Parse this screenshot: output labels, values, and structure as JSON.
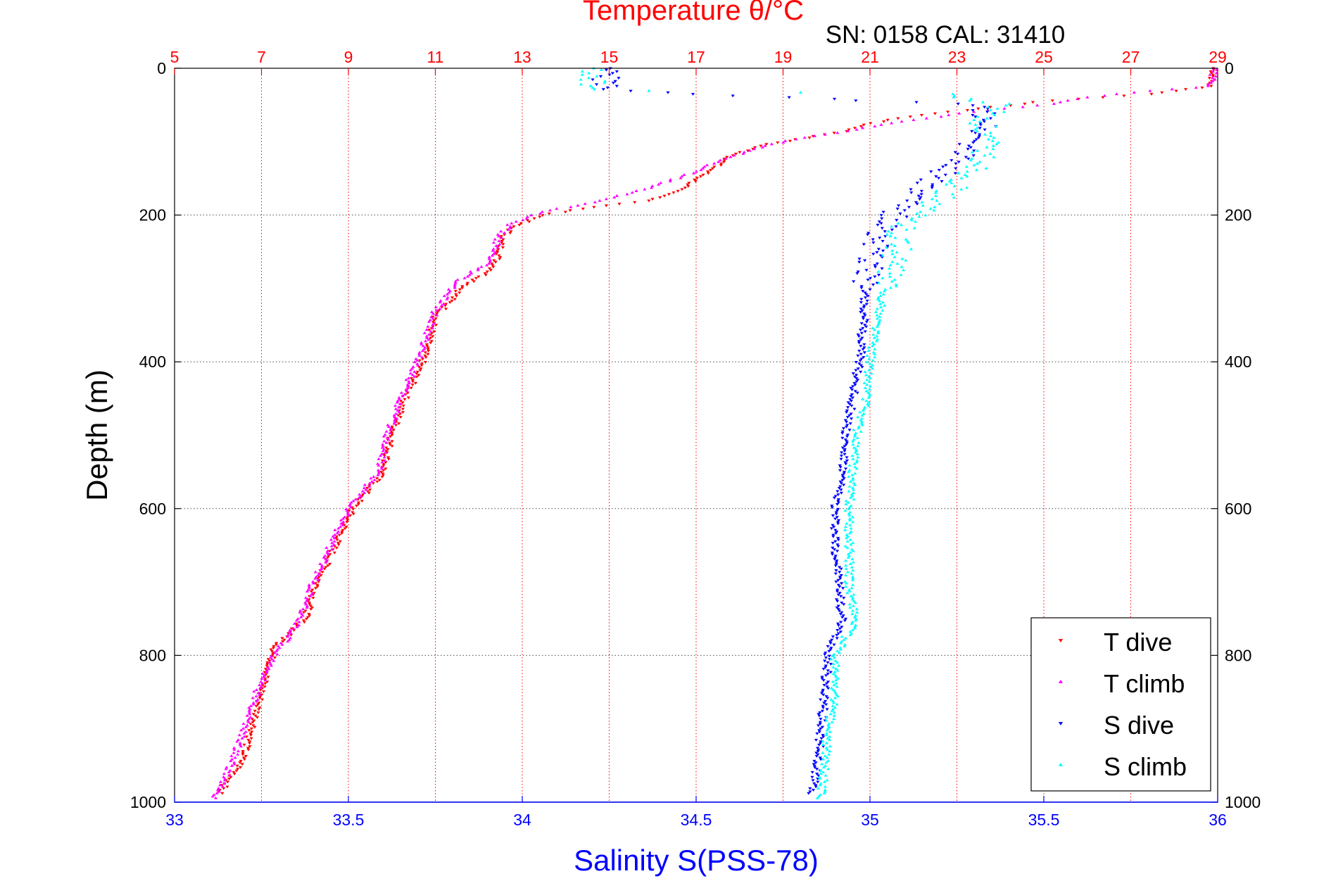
{
  "chart_data": {
    "type": "scatter",
    "title": "Temperature θ/°C",
    "subtitle": "SN: 0158  CAL: 31410",
    "ylabel": "Depth (m)",
    "xlabel": "Salinity S(PSS-78)",
    "colors": {
      "temperature_axis": "#ff0000",
      "salinity_axis": "#0000ff",
      "T_dive": "#ff0000",
      "T_climb": "#ff00ff",
      "S_dive": "#0000ff",
      "S_climb": "#00ffff",
      "grid_temperature": "#ff0000",
      "grid_depth": "#000000"
    },
    "y_axis": {
      "range": [
        0,
        1000
      ],
      "reversed": true,
      "ticks": [
        "0",
        "200",
        "400",
        "600",
        "800",
        "1000"
      ],
      "grid": true
    },
    "x_axis_salinity": {
      "range": [
        33,
        36
      ],
      "ticks": [
        "33",
        "33.5",
        "34",
        "34.5",
        "35",
        "35.5",
        "36"
      ]
    },
    "x_axis_temperature": {
      "range": [
        5,
        29
      ],
      "ticks": [
        "5",
        "7",
        "9",
        "11",
        "13",
        "15",
        "17",
        "19",
        "21",
        "23",
        "25",
        "27",
        "29"
      ],
      "grid": true
    },
    "legend": {
      "placement": "bottom-right",
      "entries": [
        "T dive",
        "T climb",
        "S dive",
        "S climb"
      ]
    },
    "series": [
      {
        "name": "T dive",
        "x_axis": "temperature",
        "marker": "triangle-down",
        "profile": [
          [
            0,
            28.9
          ],
          [
            10,
            28.9
          ],
          [
            25,
            28.8
          ],
          [
            35,
            27.5
          ],
          [
            45,
            25.0
          ],
          [
            55,
            23.5
          ],
          [
            65,
            22.0
          ],
          [
            75,
            21.0
          ],
          [
            85,
            20.5
          ],
          [
            95,
            19.5
          ],
          [
            105,
            18.5
          ],
          [
            120,
            17.8
          ],
          [
            140,
            17.3
          ],
          [
            160,
            16.8
          ],
          [
            180,
            16.0
          ],
          [
            190,
            14.5
          ],
          [
            200,
            13.5
          ],
          [
            215,
            12.8
          ],
          [
            235,
            12.5
          ],
          [
            250,
            12.5
          ],
          [
            275,
            12.3
          ],
          [
            300,
            11.6
          ],
          [
            340,
            11.0
          ],
          [
            400,
            10.7
          ],
          [
            450,
            10.3
          ],
          [
            500,
            10.0
          ],
          [
            550,
            9.8
          ],
          [
            600,
            9.1
          ],
          [
            650,
            8.7
          ],
          [
            700,
            8.3
          ],
          [
            750,
            8.0
          ],
          [
            790,
            7.3
          ],
          [
            850,
            7.0
          ],
          [
            900,
            6.8
          ],
          [
            950,
            6.5
          ],
          [
            990,
            6.0
          ]
        ]
      },
      {
        "name": "T climb",
        "x_axis": "temperature",
        "marker": "triangle-up",
        "profile": [
          [
            0,
            28.9
          ],
          [
            10,
            28.9
          ],
          [
            25,
            28.8
          ],
          [
            33,
            27.0
          ],
          [
            40,
            26.0
          ],
          [
            50,
            25.0
          ],
          [
            60,
            23.3
          ],
          [
            75,
            21.5
          ],
          [
            90,
            20.0
          ],
          [
            100,
            19.0
          ],
          [
            110,
            18.4
          ],
          [
            125,
            17.6
          ],
          [
            145,
            16.8
          ],
          [
            165,
            15.8
          ],
          [
            185,
            14.5
          ],
          [
            195,
            13.5
          ],
          [
            210,
            12.8
          ],
          [
            225,
            12.5
          ],
          [
            240,
            12.4
          ],
          [
            265,
            12.2
          ],
          [
            290,
            11.5
          ],
          [
            330,
            11.0
          ],
          [
            400,
            10.6
          ],
          [
            450,
            10.2
          ],
          [
            500,
            9.9
          ],
          [
            550,
            9.7
          ],
          [
            600,
            9.0
          ],
          [
            650,
            8.6
          ],
          [
            700,
            8.2
          ],
          [
            760,
            7.8
          ],
          [
            800,
            7.3
          ],
          [
            850,
            6.9
          ],
          [
            900,
            6.6
          ],
          [
            950,
            6.3
          ],
          [
            995,
            5.9
          ]
        ]
      },
      {
        "name": "S dive",
        "x_axis": "salinity",
        "marker": "triangle-down",
        "profile": [
          [
            0,
            34.25
          ],
          [
            15,
            34.24
          ],
          [
            30,
            34.24
          ],
          [
            50,
            35.3
          ],
          [
            70,
            35.35
          ],
          [
            100,
            35.3
          ],
          [
            130,
            35.25
          ],
          [
            160,
            35.15
          ],
          [
            200,
            35.07
          ],
          [
            230,
            35.02
          ],
          [
            260,
            35.0
          ],
          [
            300,
            34.99
          ],
          [
            350,
            34.98
          ],
          [
            400,
            34.97
          ],
          [
            450,
            34.95
          ],
          [
            500,
            34.93
          ],
          [
            550,
            34.92
          ],
          [
            600,
            34.9
          ],
          [
            650,
            34.9
          ],
          [
            700,
            34.91
          ],
          [
            750,
            34.92
          ],
          [
            800,
            34.88
          ],
          [
            850,
            34.87
          ],
          [
            900,
            34.86
          ],
          [
            950,
            34.85
          ],
          [
            990,
            34.83
          ]
        ]
      },
      {
        "name": "S climb",
        "x_axis": "salinity",
        "marker": "triangle-up",
        "profile": [
          [
            0,
            34.2
          ],
          [
            15,
            34.2
          ],
          [
            30,
            34.2
          ],
          [
            35,
            35.2
          ],
          [
            50,
            35.38
          ],
          [
            70,
            35.32
          ],
          [
            100,
            35.33
          ],
          [
            130,
            35.32
          ],
          [
            160,
            35.25
          ],
          [
            200,
            35.13
          ],
          [
            220,
            35.09
          ],
          [
            250,
            35.08
          ],
          [
            300,
            35.04
          ],
          [
            350,
            35.02
          ],
          [
            400,
            35.0
          ],
          [
            450,
            34.99
          ],
          [
            500,
            34.96
          ],
          [
            550,
            34.95
          ],
          [
            600,
            34.94
          ],
          [
            650,
            34.94
          ],
          [
            700,
            34.94
          ],
          [
            750,
            34.96
          ],
          [
            800,
            34.9
          ],
          [
            850,
            34.9
          ],
          [
            900,
            34.88
          ],
          [
            950,
            34.87
          ],
          [
            995,
            34.86
          ]
        ]
      }
    ]
  }
}
